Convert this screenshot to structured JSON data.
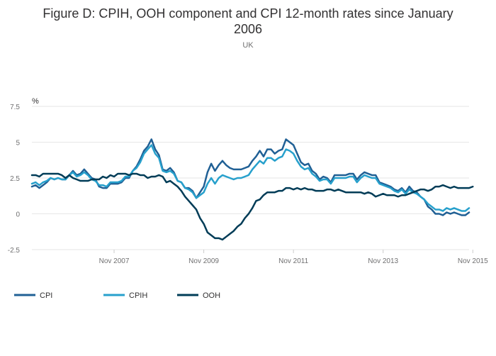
{
  "chart_data": {
    "type": "line",
    "title_line1": "Figure D: CPIH, OOH component and CPI 12-month rates since January",
    "title_line2": "2006",
    "subtitle": "UK",
    "ylabel": "%",
    "ylim": [
      -2.5,
      7.5
    ],
    "yticks": [
      {
        "value": 7.5,
        "label": "7.5"
      },
      {
        "value": 5,
        "label": "5"
      },
      {
        "value": 2.5,
        "label": "2.5"
      },
      {
        "value": 0,
        "label": "0"
      },
      {
        "value": -2.5,
        "label": "-2.5"
      }
    ],
    "xticks": [
      {
        "index": 22,
        "label": "Nov 2007"
      },
      {
        "index": 46,
        "label": "Nov 2009"
      },
      {
        "index": 70,
        "label": "Nov 2011"
      },
      {
        "index": 94,
        "label": "Nov 2013"
      },
      {
        "index": 118,
        "label": "Nov 2015"
      }
    ],
    "x_start": "Jan 2006",
    "x_end": "Nov 2015",
    "series": [
      {
        "name": "CPI",
        "color": "#206095",
        "values": [
          1.9,
          2.0,
          1.8,
          2.0,
          2.2,
          2.5,
          2.4,
          2.5,
          2.4,
          2.4,
          2.7,
          3.0,
          2.7,
          2.8,
          3.1,
          2.8,
          2.5,
          2.4,
          1.9,
          1.8,
          1.8,
          2.1,
          2.1,
          2.1,
          2.2,
          2.5,
          2.5,
          3.0,
          3.3,
          3.8,
          4.4,
          4.7,
          5.2,
          4.5,
          4.1,
          3.1,
          3.0,
          3.2,
          2.9,
          2.3,
          2.2,
          1.8,
          1.8,
          1.6,
          1.1,
          1.5,
          1.9,
          2.9,
          3.5,
          3.0,
          3.4,
          3.7,
          3.4,
          3.2,
          3.1,
          3.1,
          3.1,
          3.2,
          3.3,
          3.7,
          4.0,
          4.4,
          4.0,
          4.5,
          4.5,
          4.2,
          4.4,
          4.5,
          5.2,
          5.0,
          4.8,
          4.2,
          3.6,
          3.4,
          3.5,
          3.0,
          2.8,
          2.4,
          2.6,
          2.5,
          2.2,
          2.7,
          2.7,
          2.7,
          2.7,
          2.8,
          2.8,
          2.4,
          2.7,
          2.9,
          2.8,
          2.7,
          2.7,
          2.2,
          2.1,
          2.0,
          1.9,
          1.7,
          1.6,
          1.8,
          1.5,
          1.9,
          1.6,
          1.5,
          1.2,
          1.0,
          0.5,
          0.3,
          0.0,
          0.0,
          -0.1,
          0.1,
          0.0,
          0.1,
          0.0,
          -0.1,
          -0.1,
          0.1
        ]
      },
      {
        "name": "CPIH",
        "color": "#27a0cc",
        "values": [
          2.1,
          2.2,
          2.0,
          2.2,
          2.3,
          2.5,
          2.4,
          2.5,
          2.4,
          2.4,
          2.7,
          2.9,
          2.6,
          2.7,
          2.9,
          2.7,
          2.4,
          2.3,
          2.0,
          2.0,
          1.9,
          2.2,
          2.2,
          2.2,
          2.3,
          2.6,
          2.6,
          3.0,
          3.2,
          3.6,
          4.2,
          4.5,
          4.8,
          4.2,
          3.9,
          3.0,
          2.9,
          3.0,
          2.8,
          2.3,
          2.2,
          1.8,
          1.7,
          1.5,
          1.1,
          1.3,
          1.5,
          2.1,
          2.5,
          2.1,
          2.5,
          2.7,
          2.6,
          2.5,
          2.4,
          2.5,
          2.5,
          2.6,
          2.7,
          3.1,
          3.4,
          3.7,
          3.5,
          3.9,
          3.9,
          3.7,
          3.9,
          4.0,
          4.5,
          4.4,
          4.2,
          3.7,
          3.3,
          3.1,
          3.2,
          2.8,
          2.6,
          2.3,
          2.4,
          2.4,
          2.1,
          2.5,
          2.5,
          2.5,
          2.5,
          2.6,
          2.6,
          2.2,
          2.5,
          2.7,
          2.6,
          2.5,
          2.5,
          2.1,
          2.0,
          1.9,
          1.8,
          1.6,
          1.5,
          1.7,
          1.4,
          1.7,
          1.5,
          1.4,
          1.2,
          1.0,
          0.7,
          0.5,
          0.3,
          0.3,
          0.2,
          0.4,
          0.3,
          0.4,
          0.3,
          0.2,
          0.2,
          0.4
        ]
      },
      {
        "name": "OOH",
        "color": "#003c57",
        "values": [
          2.7,
          2.7,
          2.6,
          2.8,
          2.8,
          2.8,
          2.8,
          2.8,
          2.7,
          2.5,
          2.7,
          2.5,
          2.4,
          2.3,
          2.3,
          2.3,
          2.4,
          2.4,
          2.4,
          2.6,
          2.5,
          2.7,
          2.6,
          2.8,
          2.8,
          2.8,
          2.7,
          2.8,
          2.8,
          2.7,
          2.7,
          2.5,
          2.6,
          2.6,
          2.7,
          2.6,
          2.2,
          2.3,
          2.1,
          1.9,
          1.6,
          1.2,
          0.9,
          0.6,
          0.3,
          -0.3,
          -0.7,
          -1.3,
          -1.5,
          -1.7,
          -1.7,
          -1.8,
          -1.6,
          -1.4,
          -1.2,
          -0.9,
          -0.7,
          -0.3,
          0.0,
          0.4,
          0.9,
          1.0,
          1.3,
          1.5,
          1.5,
          1.5,
          1.6,
          1.6,
          1.8,
          1.8,
          1.7,
          1.8,
          1.7,
          1.8,
          1.7,
          1.7,
          1.6,
          1.6,
          1.6,
          1.7,
          1.7,
          1.6,
          1.7,
          1.6,
          1.5,
          1.5,
          1.5,
          1.5,
          1.5,
          1.4,
          1.5,
          1.4,
          1.2,
          1.3,
          1.4,
          1.3,
          1.3,
          1.3,
          1.2,
          1.3,
          1.3,
          1.4,
          1.5,
          1.6,
          1.7,
          1.7,
          1.6,
          1.7,
          1.9,
          1.9,
          2.0,
          1.9,
          1.8,
          1.9,
          1.8,
          1.8,
          1.8,
          1.8,
          1.9
        ]
      }
    ]
  }
}
